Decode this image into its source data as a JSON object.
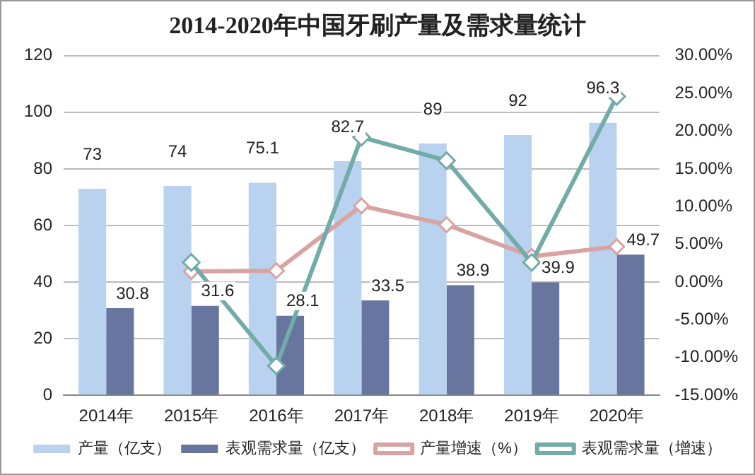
{
  "chart_data": {
    "type": "bar",
    "title": "2014-2020年中国牙刷产量及需求量统计",
    "categories": [
      "2014年",
      "2015年",
      "2016年",
      "2017年",
      "2018年",
      "2019年",
      "2020年"
    ],
    "series": [
      {
        "name": "产量（亿支）",
        "color": "#b8d2f0",
        "values": [
          73,
          74,
          75.1,
          82.7,
          89,
          92,
          96.3
        ],
        "value_labels": [
          "73",
          "74",
          "75.1",
          "82.7",
          "89",
          "92",
          "96.3"
        ]
      },
      {
        "name": "表观需求量（亿支）",
        "color": "#68759e",
        "values": [
          30.8,
          31.6,
          28.1,
          33.5,
          38.9,
          39.9,
          49.7
        ],
        "value_labels": [
          "30.8",
          "31.6",
          "28.1",
          "33.5",
          "38.9",
          "39.9",
          "49.7"
        ]
      },
      {
        "name": "产量增速（%）",
        "type": "line",
        "axis": "y2",
        "color": "#d9a3a1",
        "marker": "diamond",
        "values": [
          null,
          1.4,
          1.5,
          10.1,
          7.6,
          3.4,
          4.7
        ]
      },
      {
        "name": "表观需求量（增速）",
        "type": "line",
        "axis": "y2",
        "color": "#72aba7",
        "marker": "diamond",
        "values": [
          null,
          2.6,
          -11.1,
          19.2,
          16.1,
          2.6,
          24.6
        ]
      }
    ],
    "ylim": [
      0,
      120
    ],
    "yticks": [
      0,
      20,
      40,
      60,
      80,
      100,
      120
    ],
    "y2lim": [
      -15,
      30
    ],
    "y2ticks": [
      {
        "value": -15,
        "label": "-15.00%"
      },
      {
        "value": -10,
        "label": "-10.00%"
      },
      {
        "value": -5,
        "label": "-5.00%"
      },
      {
        "value": 0,
        "label": "0.00%"
      },
      {
        "value": 5,
        "label": "5.00%"
      },
      {
        "value": 10,
        "label": "10.00%"
      },
      {
        "value": 15,
        "label": "15.00%"
      },
      {
        "value": 20,
        "label": "20.00%"
      },
      {
        "value": 25,
        "label": "25.00%"
      },
      {
        "value": 30,
        "label": "30.00%"
      }
    ],
    "grid": "y",
    "legend": "bottom"
  }
}
